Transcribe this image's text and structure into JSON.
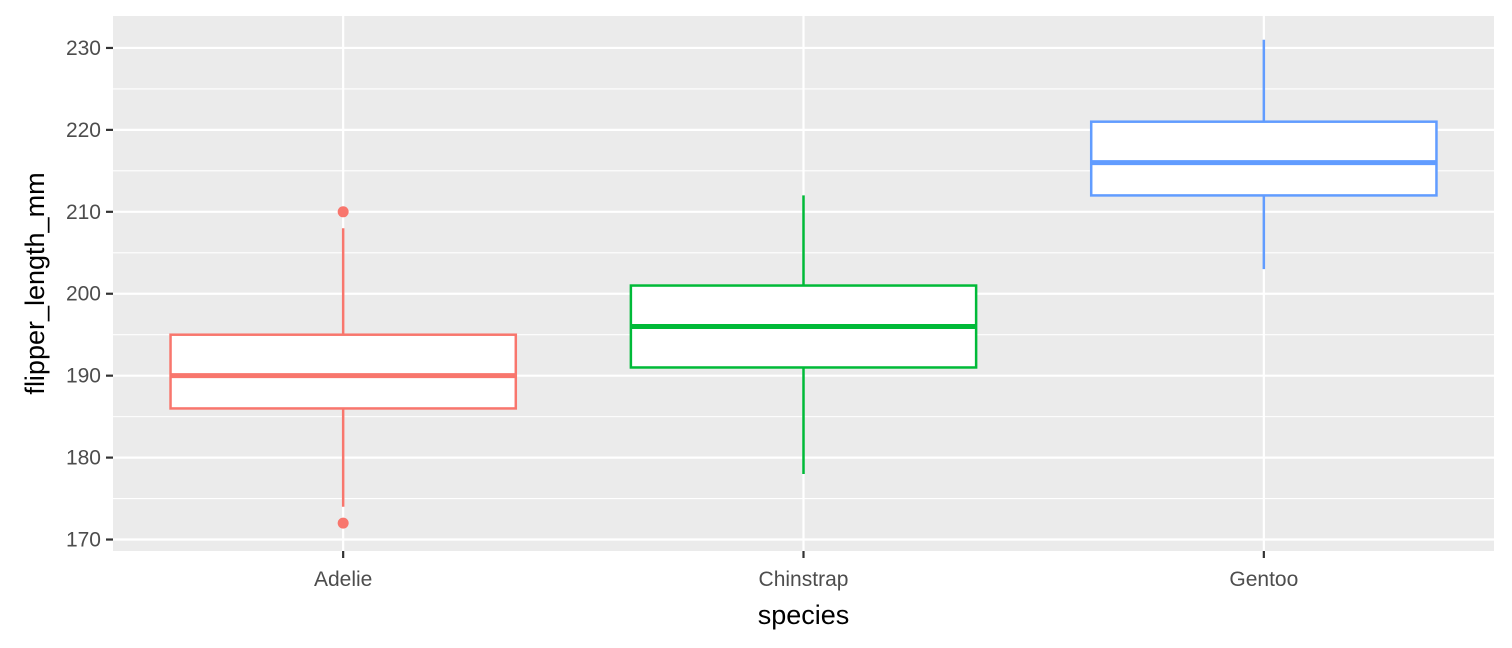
{
  "chart_data": {
    "type": "boxplot",
    "xlabel": "species",
    "ylabel": "flipper_length_mm",
    "ylim": [
      168.6,
      233.9
    ],
    "y_ticks": [
      170,
      180,
      190,
      200,
      210,
      220,
      230
    ],
    "categories": [
      "Adelie",
      "Chinstrap",
      "Gentoo"
    ],
    "grid": true,
    "legend": "none",
    "series": [
      {
        "category": "Adelie",
        "color": "#F8766D",
        "lower_whisker": 174,
        "q1": 186,
        "median": 190,
        "q3": 195,
        "upper_whisker": 208,
        "outliers": [
          172,
          210
        ]
      },
      {
        "category": "Chinstrap",
        "color": "#00BA38",
        "lower_whisker": 178,
        "q1": 191,
        "median": 196,
        "q3": 201,
        "upper_whisker": 212,
        "outliers": []
      },
      {
        "category": "Gentoo",
        "color": "#619CFF",
        "lower_whisker": 203,
        "q1": 212,
        "median": 216,
        "q3": 221,
        "upper_whisker": 231,
        "outliers": []
      }
    ]
  }
}
